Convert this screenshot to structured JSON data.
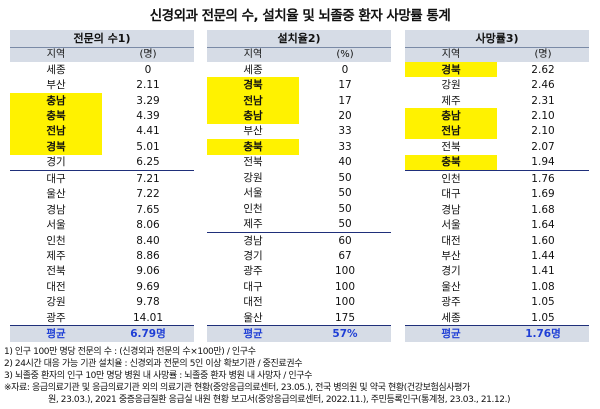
{
  "title": "신경외과 전문의 수, 설치율 및 뇌졸중 환자 사망률 통계",
  "tables": [
    {
      "header": "전문의 수1)",
      "col_region": "지역",
      "col_unit": "(명)",
      "rows": [
        {
          "region": "세종",
          "value": "0",
          "hl": false
        },
        {
          "region": "부산",
          "value": "2.11",
          "hl": false
        },
        {
          "region": "충남",
          "value": "3.29",
          "hl": true
        },
        {
          "region": "충북",
          "value": "4.39",
          "hl": true
        },
        {
          "region": "전남",
          "value": "4.41",
          "hl": true
        },
        {
          "region": "경북",
          "value": "5.01",
          "hl": true
        },
        {
          "region": "경기",
          "value": "6.25",
          "hl": false
        },
        {
          "region": "대구",
          "value": "7.21",
          "hl": false
        },
        {
          "region": "울산",
          "value": "7.22",
          "hl": false
        },
        {
          "region": "경남",
          "value": "7.65",
          "hl": false
        },
        {
          "region": "서울",
          "value": "8.06",
          "hl": false
        },
        {
          "region": "인천",
          "value": "8.40",
          "hl": false
        },
        {
          "region": "제주",
          "value": "8.86",
          "hl": false
        },
        {
          "region": "전북",
          "value": "9.06",
          "hl": false
        },
        {
          "region": "대전",
          "value": "9.69",
          "hl": false
        },
        {
          "region": "강원",
          "value": "9.78",
          "hl": false
        },
        {
          "region": "광주",
          "value": "14.01",
          "hl": false
        }
      ],
      "sep_after": 6,
      "avg_label": "평균",
      "avg_value": "6.79명"
    },
    {
      "header": "설치율2)",
      "col_region": "지역",
      "col_unit": "(%)",
      "rows": [
        {
          "region": "세종",
          "value": "0",
          "hl": false
        },
        {
          "region": "경북",
          "value": "17",
          "hl": true
        },
        {
          "region": "전남",
          "value": "17",
          "hl": true
        },
        {
          "region": "충남",
          "value": "20",
          "hl": true
        },
        {
          "region": "부산",
          "value": "33",
          "hl": false
        },
        {
          "region": "충북",
          "value": "33",
          "hl": true
        },
        {
          "region": "전북",
          "value": "40",
          "hl": false
        },
        {
          "region": "강원",
          "value": "50",
          "hl": false
        },
        {
          "region": "서울",
          "value": "50",
          "hl": false
        },
        {
          "region": "인천",
          "value": "50",
          "hl": false
        },
        {
          "region": "제주",
          "value": "50",
          "hl": false
        },
        {
          "region": "경남",
          "value": "60",
          "hl": false
        },
        {
          "region": "경기",
          "value": "67",
          "hl": false
        },
        {
          "region": "광주",
          "value": "100",
          "hl": false
        },
        {
          "region": "대구",
          "value": "100",
          "hl": false
        },
        {
          "region": "대전",
          "value": "100",
          "hl": false
        },
        {
          "region": "울산",
          "value": "175",
          "hl": false
        }
      ],
      "sep_after": 10,
      "avg_label": "평균",
      "avg_value": "57%"
    },
    {
      "header": "사망률3)",
      "col_region": "지역",
      "col_unit": "(명)",
      "rows": [
        {
          "region": "경북",
          "value": "2.62",
          "hl": true
        },
        {
          "region": "강원",
          "value": "2.46",
          "hl": false
        },
        {
          "region": "제주",
          "value": "2.31",
          "hl": false
        },
        {
          "region": "충남",
          "value": "2.10",
          "hl": true
        },
        {
          "region": "전남",
          "value": "2.10",
          "hl": true
        },
        {
          "region": "전북",
          "value": "2.07",
          "hl": false
        },
        {
          "region": "충북",
          "value": "1.94",
          "hl": true
        },
        {
          "region": "인천",
          "value": "1.76",
          "hl": false
        },
        {
          "region": "대구",
          "value": "1.69",
          "hl": false
        },
        {
          "region": "경남",
          "value": "1.68",
          "hl": false
        },
        {
          "region": "서울",
          "value": "1.64",
          "hl": false
        },
        {
          "region": "대전",
          "value": "1.60",
          "hl": false
        },
        {
          "region": "부산",
          "value": "1.44",
          "hl": false
        },
        {
          "region": "경기",
          "value": "1.41",
          "hl": false
        },
        {
          "region": "울산",
          "value": "1.08",
          "hl": false
        },
        {
          "region": "광주",
          "value": "1.05",
          "hl": false
        },
        {
          "region": "세종",
          "value": "1.05",
          "hl": false
        }
      ],
      "sep_after": 6,
      "avg_label": "평균",
      "avg_value": "1.76명"
    }
  ],
  "notes": {
    "n1": "1) 인구 100만 명당 전문의 수 : (신경외과 전문의 수×100만) / 인구수",
    "n2": "2) 24시간 대응 가능 기관 설치율 : 신경외과 전문의 5인 이상 확보기관 / 중진료권수",
    "n3": "3) 뇌졸중 환자의 인구 10만 명당 병원 내 사망률 : 뇌졸중 환자 병원 내 사망자 / 인구수",
    "n4": "※자료: 응급의료기관 및 응급의료기관 외의 의료기관 현황(중앙응급의료센터, 23.05.), 전국 병의원 및 약국 현황(건강보험심사평가",
    "n5": "원, 23.03.), 2021 중증응급질환 응급실 내원 현황 보고서(중앙응급의료센터, 2022.11.), 주민등록인구(통계청, 23.03., 21.12.)"
  }
}
